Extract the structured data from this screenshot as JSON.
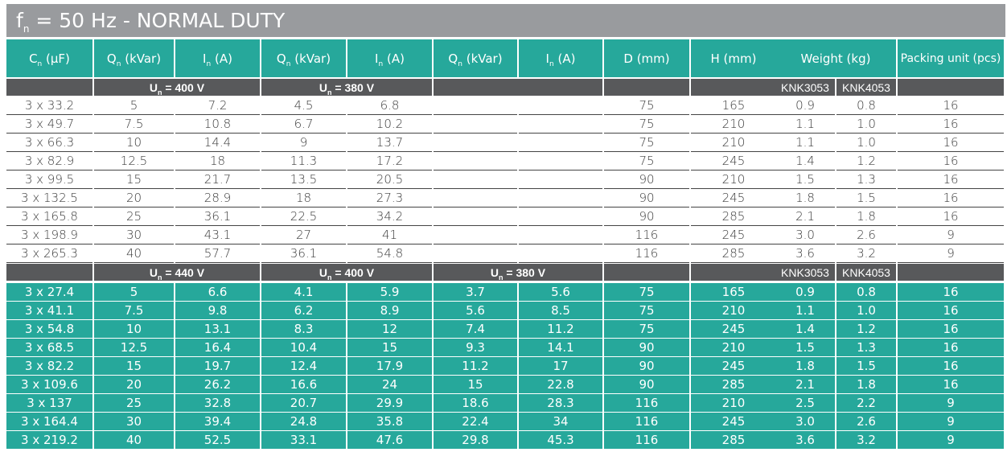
{
  "title": {
    "main": "f",
    "sub": "n",
    "rest": " = 50 Hz - NORMAL DUTY"
  },
  "headers": [
    {
      "base": "C",
      "sub": "n",
      "rest": " (μF)"
    },
    {
      "base": "Q",
      "sub": "n",
      "rest": " (kVar)"
    },
    {
      "base": "I",
      "sub": "n",
      "rest": " (A)"
    },
    {
      "base": "Q",
      "sub": "n",
      "rest": " (kVar)"
    },
    {
      "base": "I",
      "sub": "n",
      "rest": " (A)"
    },
    {
      "base": "Q",
      "sub": "n",
      "rest": " (kVar)"
    },
    {
      "base": "I",
      "sub": "n",
      "rest": " (A)"
    },
    {
      "base": "D (mm)",
      "sub": "",
      "rest": ""
    },
    {
      "base": "H (mm)",
      "sub": "",
      "rest": ""
    },
    {
      "base": "Weight (kg)",
      "sub": "",
      "rest": ""
    },
    {
      "base": "Packing unit (pcs)",
      "sub": "",
      "rest": ""
    }
  ],
  "sections": [
    {
      "voltage_groups": [
        {
          "base": "U",
          "sub": "n",
          "rest": " = 400 V"
        },
        {
          "base": "U",
          "sub": "n",
          "rest": " = 380 V"
        },
        {
          "base": "",
          "sub": "",
          "rest": ""
        }
      ],
      "weight_labels": [
        "KNK3053",
        "KNK4053"
      ],
      "style": "white",
      "rows": [
        [
          "3 x 33.2",
          "5",
          "7.2",
          "4.5",
          "6.8",
          "",
          "",
          "75",
          "165",
          "0.9",
          "0.8",
          "16"
        ],
        [
          "3 x 49.7",
          "7.5",
          "10.8",
          "6.7",
          "10.2",
          "",
          "",
          "75",
          "210",
          "1.1",
          "1.0",
          "16"
        ],
        [
          "3 x 66.3",
          "10",
          "14.4",
          "9",
          "13.7",
          "",
          "",
          "75",
          "210",
          "1.1",
          "1.0",
          "16"
        ],
        [
          "3 x 82.9",
          "12.5",
          "18",
          "11.3",
          "17.2",
          "",
          "",
          "75",
          "245",
          "1.4",
          "1.2",
          "16"
        ],
        [
          "3 x 99.5",
          "15",
          "21.7",
          "13.5",
          "20.5",
          "",
          "",
          "90",
          "210",
          "1.5",
          "1.3",
          "16"
        ],
        [
          "3 x 132.5",
          "20",
          "28.9",
          "18",
          "27.3",
          "",
          "",
          "90",
          "245",
          "1.8",
          "1.5",
          "16"
        ],
        [
          "3 x 165.8",
          "25",
          "36.1",
          "22.5",
          "34.2",
          "",
          "",
          "90",
          "285",
          "2.1",
          "1.8",
          "16"
        ],
        [
          "3 x 198.9",
          "30",
          "43.1",
          "27",
          "41",
          "",
          "",
          "116",
          "245",
          "3.0",
          "2.6",
          "9"
        ],
        [
          "3 x 265.3",
          "40",
          "57.7",
          "36.1",
          "54.8",
          "",
          "",
          "116",
          "285",
          "3.6",
          "3.2",
          "9"
        ]
      ]
    },
    {
      "voltage_groups": [
        {
          "base": "U",
          "sub": "n",
          "rest": " = 440 V"
        },
        {
          "base": "U",
          "sub": "n",
          "rest": " = 400 V"
        },
        {
          "base": "U",
          "sub": "n",
          "rest": " = 380 V"
        }
      ],
      "weight_labels": [
        "KNK3053",
        "KNK4053"
      ],
      "style": "teal",
      "rows": [
        [
          "3 x 27.4",
          "5",
          "6.6",
          "4.1",
          "5.9",
          "3.7",
          "5.6",
          "75",
          "165",
          "0.9",
          "0.8",
          "16"
        ],
        [
          "3 x 41.1",
          "7.5",
          "9.8",
          "6.2",
          "8.9",
          "5.6",
          "8.5",
          "75",
          "210",
          "1.1",
          "1.0",
          "16"
        ],
        [
          "3 x 54.8",
          "10",
          "13.1",
          "8.3",
          "12",
          "7.4",
          "11.2",
          "75",
          "245",
          "1.4",
          "1.2",
          "16"
        ],
        [
          "3 x 68.5",
          "12.5",
          "16.4",
          "10.4",
          "15",
          "9.3",
          "14.1",
          "90",
          "210",
          "1.5",
          "1.3",
          "16"
        ],
        [
          "3 x 82.2",
          "15",
          "19.7",
          "12.4",
          "17.9",
          "11.2",
          "17",
          "90",
          "245",
          "1.8",
          "1.5",
          "16"
        ],
        [
          "3 x 109.6",
          "20",
          "26.2",
          "16.6",
          "24",
          "15",
          "22.8",
          "90",
          "285",
          "2.1",
          "1.8",
          "16"
        ],
        [
          "3 x 137",
          "25",
          "32.8",
          "20.7",
          "29.9",
          "18.6",
          "28.3",
          "116",
          "210",
          "2.5",
          "2.2",
          "9"
        ],
        [
          "3 x 164.4",
          "30",
          "39.4",
          "24.8",
          "35.8",
          "22.4",
          "34",
          "116",
          "245",
          "3.0",
          "2.6",
          "9"
        ],
        [
          "3 x 219.2",
          "40",
          "52.5",
          "33.1",
          "47.6",
          "29.8",
          "45.3",
          "116",
          "285",
          "3.6",
          "3.2",
          "9"
        ]
      ]
    }
  ],
  "colors": {
    "teal": "#26a89b",
    "dark": "#58595b",
    "grey_title": "#999b9e"
  }
}
